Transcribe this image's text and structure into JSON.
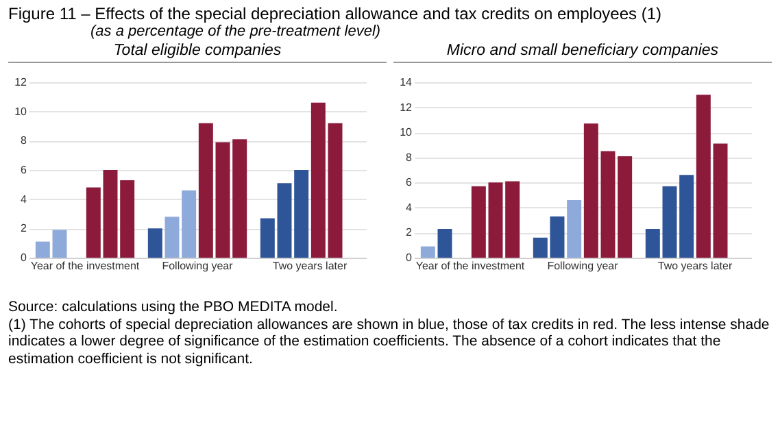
{
  "chart_data": [
    {
      "type": "bar",
      "title": "Total eligible companies",
      "categories": [
        "Year of the investment",
        "Following year",
        "Two years later"
      ],
      "series": [
        {
          "colors": [
            "#8eaadb",
            "#2e5597",
            "#2e5597"
          ],
          "values": [
            1.1,
            2.0,
            2.7
          ]
        },
        {
          "colors": [
            "#8eaadb",
            "#8eaadb",
            "#2e5597"
          ],
          "values": [
            1.9,
            2.8,
            5.1
          ]
        },
        {
          "colors": [
            null,
            "#8eaadb",
            "#2e5597"
          ],
          "values": [
            null,
            4.6,
            6.0
          ]
        },
        {
          "colors": [
            "#8c1a3b",
            "#8c1a3b",
            "#8c1a3b"
          ],
          "values": [
            4.8,
            9.2,
            10.6
          ]
        },
        {
          "colors": [
            "#8c1a3b",
            "#8c1a3b",
            "#8c1a3b"
          ],
          "values": [
            6.0,
            7.9,
            9.2
          ]
        },
        {
          "colors": [
            "#8c1a3b",
            "#8c1a3b",
            null
          ],
          "values": [
            5.3,
            8.1,
            null
          ]
        }
      ],
      "ylim": [
        0,
        12
      ],
      "yticks": [
        0,
        2,
        4,
        6,
        8,
        10,
        12
      ],
      "grid": "y",
      "annotations": [
        "Figure 11 – Effects of the special depreciation allowance and tax credits on employees (1)",
        "(as a percentage of the pre-treatment level)",
        "Source: calculations using the PBO MEDITA model.",
        "(1) The cohorts of special depreciation allowances are shown in blue, those of tax credits in red. The less intense shade indicates a lower degree of significance of the estimation coefficients. The absence of a cohort indicates that the estimation coefficient is not significant."
      ]
    },
    {
      "type": "bar",
      "title": "Micro and small beneficiary companies",
      "categories": [
        "Year of the investment",
        "Following year",
        "Two years later"
      ],
      "series": [
        {
          "colors": [
            "#8eaadb",
            "#2e5597",
            "#2e5597"
          ],
          "values": [
            0.9,
            1.6,
            2.3
          ]
        },
        {
          "colors": [
            "#2e5597",
            "#2e5597",
            "#2e5597"
          ],
          "values": [
            2.3,
            3.3,
            5.7
          ]
        },
        {
          "colors": [
            null,
            "#8eaadb",
            "#2e5597"
          ],
          "values": [
            null,
            4.6,
            6.6
          ]
        },
        {
          "colors": [
            "#8c1a3b",
            "#8c1a3b",
            "#8c1a3b"
          ],
          "values": [
            5.7,
            10.7,
            13.0
          ]
        },
        {
          "colors": [
            "#8c1a3b",
            "#8c1a3b",
            "#8c1a3b"
          ],
          "values": [
            6.0,
            8.5,
            9.1
          ]
        },
        {
          "colors": [
            "#8c1a3b",
            "#8c1a3b",
            null
          ],
          "values": [
            6.1,
            8.1,
            null
          ]
        }
      ],
      "ylim": [
        0,
        14
      ],
      "yticks": [
        0,
        2,
        4,
        6,
        8,
        10,
        12,
        14
      ],
      "grid": "y"
    }
  ]
}
